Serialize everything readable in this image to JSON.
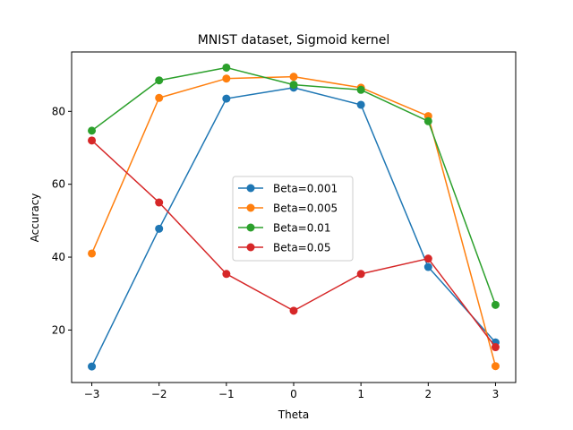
{
  "chart_data": {
    "type": "line",
    "title": "MNIST dataset, Sigmoid kernel",
    "xlabel": "Theta",
    "ylabel": "Accuracy",
    "x": [
      -3,
      -2,
      -1,
      0,
      1,
      2,
      3
    ],
    "xlim": [
      -3.3,
      3.3
    ],
    "ylim": [
      5.6,
      96.3
    ],
    "xticks": [
      -3,
      -2,
      -1,
      0,
      1,
      2,
      3
    ],
    "xtick_labels": [
      "−3",
      "−2",
      "−1",
      "0",
      "1",
      "2",
      "3"
    ],
    "yticks": [
      20,
      40,
      60,
      80
    ],
    "ytick_labels": [
      "20",
      "40",
      "60",
      "80"
    ],
    "grid": false,
    "legend_position": "center",
    "series": [
      {
        "name": "Beta=0.001",
        "color": "#1f77b4",
        "values": [
          10.0,
          47.8,
          83.5,
          86.5,
          81.8,
          37.3,
          16.6
        ]
      },
      {
        "name": "Beta=0.005",
        "color": "#ff7f0e",
        "values": [
          41.0,
          83.7,
          89.0,
          89.5,
          86.5,
          78.7,
          10.1
        ]
      },
      {
        "name": "Beta=0.01",
        "color": "#2ca02c",
        "values": [
          74.7,
          88.5,
          92.0,
          87.3,
          85.9,
          77.3,
          26.9
        ]
      },
      {
        "name": "Beta=0.05",
        "color": "#d62728",
        "values": [
          72.0,
          55.0,
          35.4,
          25.3,
          35.4,
          39.6,
          15.3
        ]
      }
    ]
  }
}
